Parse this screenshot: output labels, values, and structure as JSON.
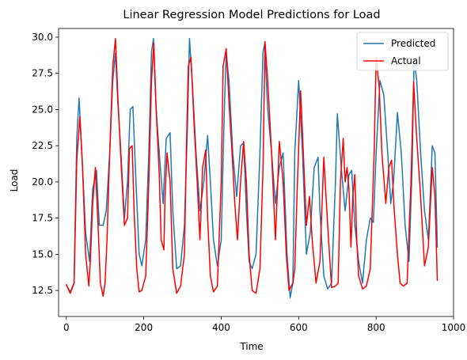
{
  "chart_data": {
    "type": "line",
    "title": "Linear Regression Model Predictions for Load",
    "xlabel": "Time",
    "ylabel": "Load",
    "xlim": [
      -20,
      1000
    ],
    "ylim": [
      10.7,
      30.6
    ],
    "xticks": [
      0,
      200,
      400,
      600,
      800,
      1000
    ],
    "xtick_labels": [
      "0",
      "200",
      "400",
      "600",
      "800",
      "1000"
    ],
    "yticks": [
      12.5,
      15.0,
      17.5,
      20.0,
      22.5,
      25.0,
      27.5,
      30.0
    ],
    "ytick_labels": [
      "12.5",
      "15.0",
      "17.5",
      "20.0",
      "22.5",
      "25.0",
      "27.5",
      "30.0"
    ],
    "grid": false,
    "legend_position": "top-right",
    "series": [
      {
        "name": "Predicted",
        "color": "#1f77b4",
        "x": [
          0,
          10,
          20,
          27,
          33,
          40,
          50,
          60,
          68,
          78,
          85,
          95,
          103,
          112,
          120,
          127,
          133,
          140,
          150,
          158,
          165,
          172,
          180,
          188,
          195,
          205,
          213,
          220,
          225,
          232,
          240,
          250,
          258,
          268,
          275,
          285,
          295,
          305,
          313,
          318,
          325,
          335,
          345,
          355,
          365,
          372,
          380,
          390,
          400,
          408,
          413,
          420,
          430,
          440,
          450,
          458,
          465,
          472,
          480,
          490,
          500,
          508,
          512,
          520,
          530,
          540,
          550,
          560,
          570,
          578,
          585,
          590,
          600,
          610,
          620,
          630,
          640,
          650,
          655,
          665,
          675,
          685,
          695,
          700,
          710,
          720,
          730,
          737,
          745,
          755,
          765,
          775,
          785,
          793,
          800,
          810,
          820,
          830,
          838,
          845,
          855,
          865,
          875,
          885,
          893,
          898,
          905,
          915,
          925,
          935,
          945,
          952,
          958
        ],
        "y": [
          12.9,
          12.4,
          13.0,
          23.0,
          25.8,
          22.0,
          16.5,
          14.5,
          19.5,
          20.8,
          17.0,
          17.0,
          18.0,
          22.0,
          27.0,
          28.9,
          25.5,
          22.5,
          17.5,
          20.0,
          25.0,
          25.2,
          20.0,
          15.0,
          14.2,
          16.0,
          22.0,
          29.0,
          29.9,
          25.0,
          22.0,
          18.5,
          23.0,
          23.4,
          18.0,
          14.0,
          14.2,
          17.0,
          24.0,
          29.9,
          27.0,
          22.0,
          18.0,
          20.0,
          23.2,
          20.0,
          16.0,
          14.2,
          16.0,
          25.0,
          28.9,
          27.0,
          22.0,
          19.0,
          22.5,
          22.7,
          18.0,
          14.5,
          14.0,
          15.0,
          22.0,
          29.0,
          29.5,
          25.0,
          22.0,
          18.5,
          21.0,
          22.0,
          15.0,
          12.0,
          13.0,
          22.0,
          27.0,
          22.0,
          15.0,
          16.5,
          21.0,
          21.7,
          18.0,
          13.5,
          12.6,
          13.0,
          20.0,
          24.7,
          21.0,
          18.0,
          20.5,
          20.8,
          17.0,
          14.5,
          13.0,
          16.0,
          17.5,
          17.2,
          22.0,
          27.0,
          26.0,
          22.0,
          18.5,
          20.0,
          24.8,
          22.0,
          17.0,
          14.5,
          21.0,
          28.5,
          27.0,
          22.0,
          18.0,
          16.0,
          22.5,
          22.0,
          15.5
        ]
      },
      {
        "name": "Actual",
        "color": "#ff0000",
        "x": [
          0,
          10,
          20,
          27,
          35,
          42,
          50,
          58,
          62,
          68,
          75,
          82,
          88,
          95,
          100,
          105,
          112,
          120,
          127,
          133,
          140,
          150,
          158,
          163,
          170,
          175,
          182,
          188,
          195,
          205,
          213,
          220,
          226,
          232,
          240,
          245,
          252,
          255,
          260,
          268,
          275,
          285,
          295,
          305,
          310,
          315,
          322,
          330,
          338,
          345,
          352,
          360,
          365,
          372,
          380,
          390,
          400,
          405,
          413,
          420,
          428,
          435,
          442,
          450,
          458,
          465,
          472,
          480,
          490,
          500,
          508,
          513,
          520,
          530,
          535,
          540,
          550,
          560,
          568,
          575,
          585,
          590,
          597,
          605,
          612,
          620,
          628,
          635,
          645,
          655,
          665,
          675,
          685,
          695,
          702,
          708,
          715,
          720,
          725,
          730,
          735,
          740,
          745,
          750,
          755,
          765,
          775,
          785,
          795,
          800,
          808,
          815,
          825,
          833,
          840,
          847,
          855,
          862,
          870,
          880,
          890,
          897,
          905,
          915,
          925,
          935,
          945,
          952,
          958
        ],
        "y": [
          12.9,
          12.3,
          13.0,
          21.5,
          24.5,
          21.0,
          15.0,
          12.8,
          14.5,
          18.5,
          21.0,
          17.0,
          13.0,
          12.1,
          13.0,
          16.0,
          22.0,
          28.0,
          29.9,
          26.0,
          22.0,
          17.0,
          17.5,
          22.3,
          22.5,
          18.0,
          14.0,
          12.4,
          12.5,
          13.5,
          20.0,
          27.0,
          29.6,
          25.0,
          20.5,
          16.0,
          15.3,
          19.0,
          22.0,
          20.0,
          14.0,
          12.3,
          12.8,
          15.0,
          22.0,
          28.0,
          28.6,
          24.0,
          20.0,
          16.0,
          21.0,
          22.2,
          17.5,
          13.5,
          12.4,
          12.8,
          20.0,
          28.0,
          29.2,
          25.5,
          22.0,
          18.5,
          16.0,
          20.0,
          22.8,
          20.0,
          15.0,
          12.5,
          12.3,
          14.0,
          21.0,
          29.7,
          27.0,
          22.0,
          19.0,
          16.0,
          22.8,
          20.0,
          15.0,
          12.5,
          13.0,
          14.0,
          20.0,
          26.3,
          22.0,
          17.0,
          19.0,
          16.0,
          13.0,
          14.5,
          21.7,
          17.0,
          12.7,
          12.8,
          13.0,
          20.0,
          23.0,
          20.0,
          21.0,
          19.5,
          15.5,
          19.0,
          20.5,
          16.0,
          13.5,
          12.6,
          12.8,
          14.0,
          22.0,
          28.6,
          26.5,
          22.0,
          18.5,
          21.0,
          21.5,
          18.0,
          15.0,
          13.0,
          12.8,
          13.0,
          20.0,
          26.9,
          23.0,
          19.0,
          14.2,
          15.5,
          21.0,
          19.0,
          13.2
        ]
      }
    ]
  }
}
